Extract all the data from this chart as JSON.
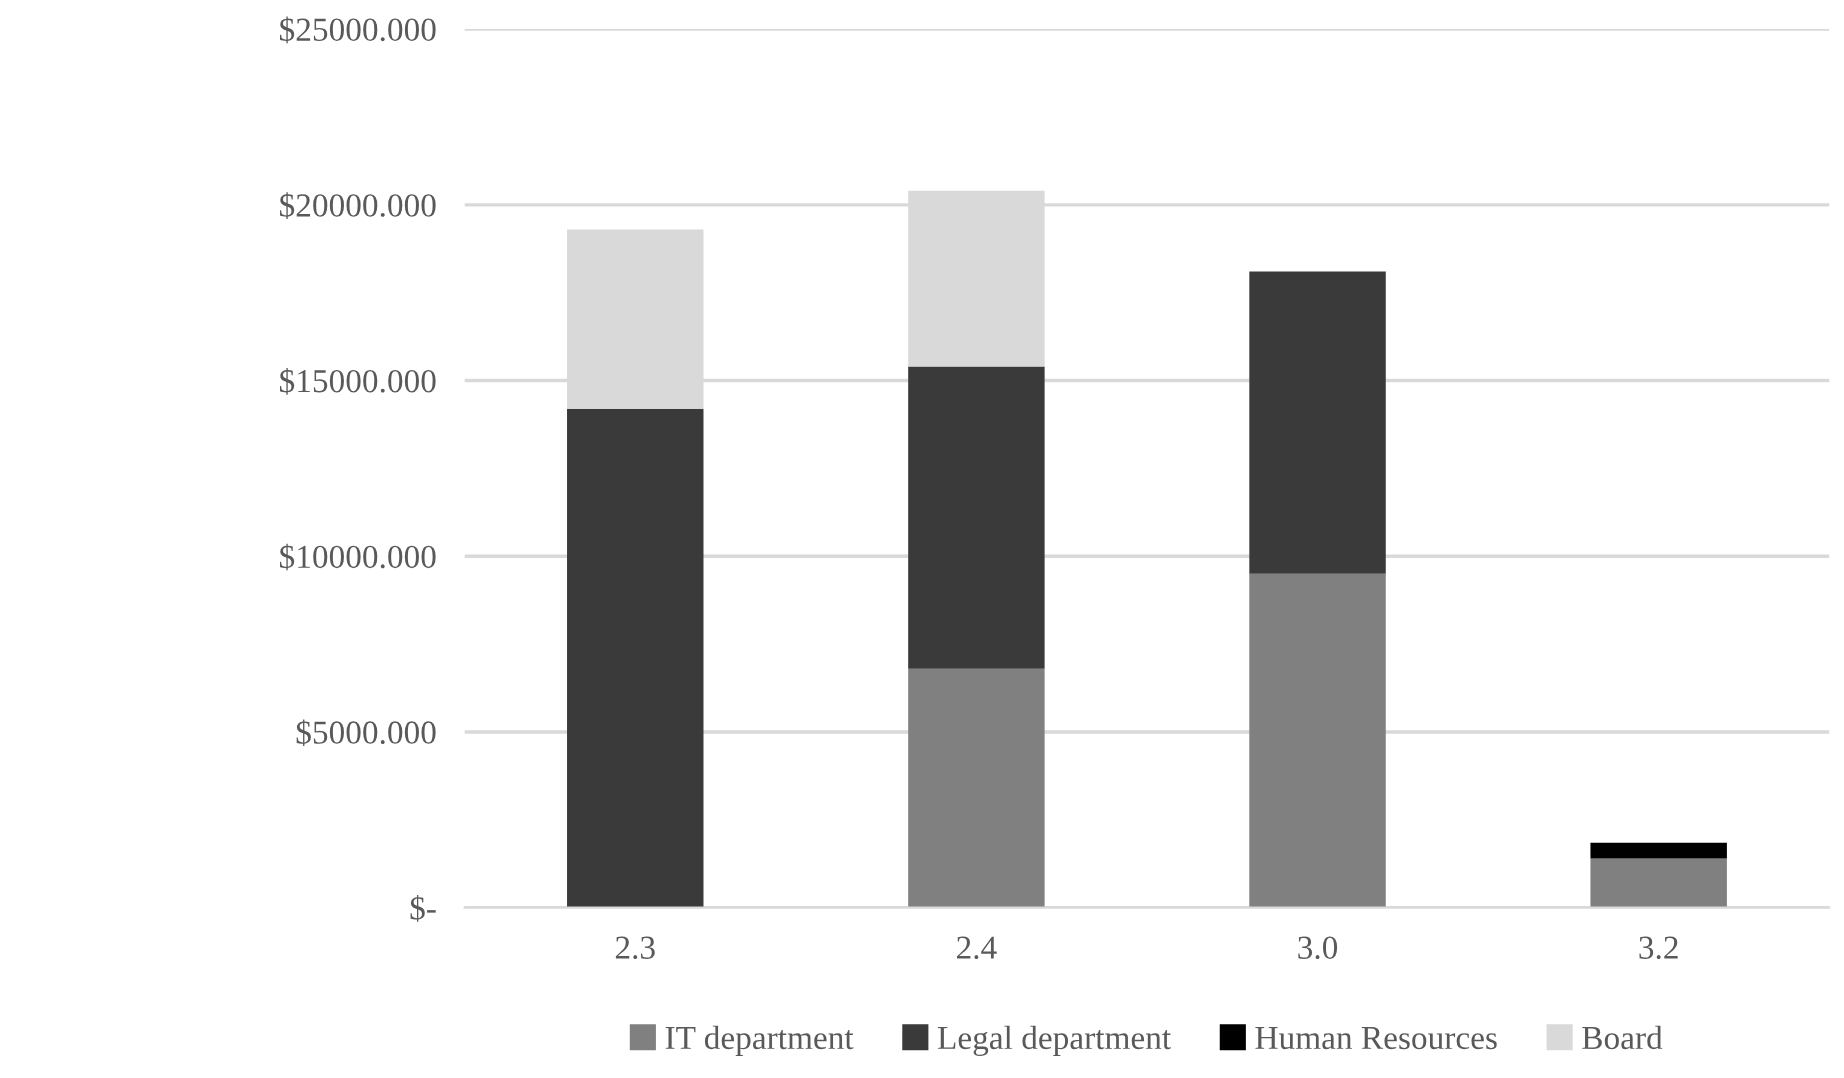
{
  "chart_data": {
    "type": "bar",
    "stacked": true,
    "categories": [
      "2.3",
      "2.4",
      "3.0",
      "3.2"
    ],
    "series": [
      {
        "name": "IT department",
        "color": "#808080",
        "values": [
          0,
          6800,
          9500,
          1400
        ]
      },
      {
        "name": "Legal department",
        "color": "#3a3a3a",
        "values": [
          14200,
          8600,
          8600,
          0
        ]
      },
      {
        "name": "Human Resources",
        "color": "#000000",
        "values": [
          0,
          0,
          0,
          450
        ]
      },
      {
        "name": "Board",
        "color": "#d9d9d9",
        "values": [
          5100,
          5000,
          0,
          0
        ]
      }
    ],
    "ylim": [
      0,
      25000
    ],
    "yticks": [
      {
        "value": 0,
        "label": "$-"
      },
      {
        "value": 5000,
        "label": "$5000.000"
      },
      {
        "value": 10000,
        "label": "$10000.000"
      },
      {
        "value": 15000,
        "label": "$15000.000"
      },
      {
        "value": 20000,
        "label": "$20000.000"
      },
      {
        "value": 25000,
        "label": "$25000.000"
      }
    ],
    "grid": "y",
    "legend": "bottom"
  }
}
